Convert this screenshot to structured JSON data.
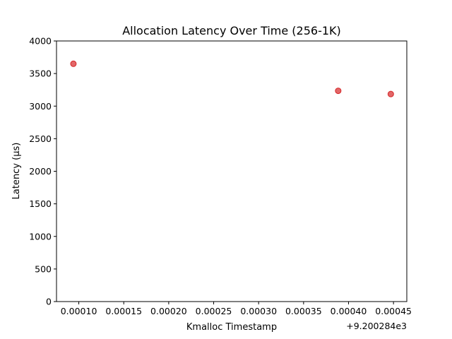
{
  "chart_data": {
    "type": "scatter",
    "title": "Allocation Latency Over Time (256-1K)",
    "xlabel": "Kmalloc Timestamp",
    "ylabel": "Latency (µs)",
    "x_offset_label": "+9.200284e3",
    "xlim": [
      7.52e-05,
      0.0004648
    ],
    "ylim": [
      0,
      4000
    ],
    "x_ticks": [
      0.0001,
      0.00015,
      0.0002,
      0.00025,
      0.0003,
      0.00035,
      0.0004,
      0.00045
    ],
    "x_tick_labels": [
      "0.00010",
      "0.00015",
      "0.00020",
      "0.00025",
      "0.00030",
      "0.00035",
      "0.00040",
      "0.00045"
    ],
    "y_ticks": [
      0,
      500,
      1000,
      1500,
      2000,
      2500,
      3000,
      3500,
      4000
    ],
    "y_tick_labels": [
      "0",
      "500",
      "1000",
      "1500",
      "2000",
      "2500",
      "3000",
      "3500",
      "4000"
    ],
    "grid": false,
    "marker_color": "#d62728",
    "series": [
      {
        "x": [
          9.4e-05,
          0.0003885,
          0.000447
        ],
        "y": [
          3650,
          3235,
          3185
        ]
      }
    ]
  }
}
